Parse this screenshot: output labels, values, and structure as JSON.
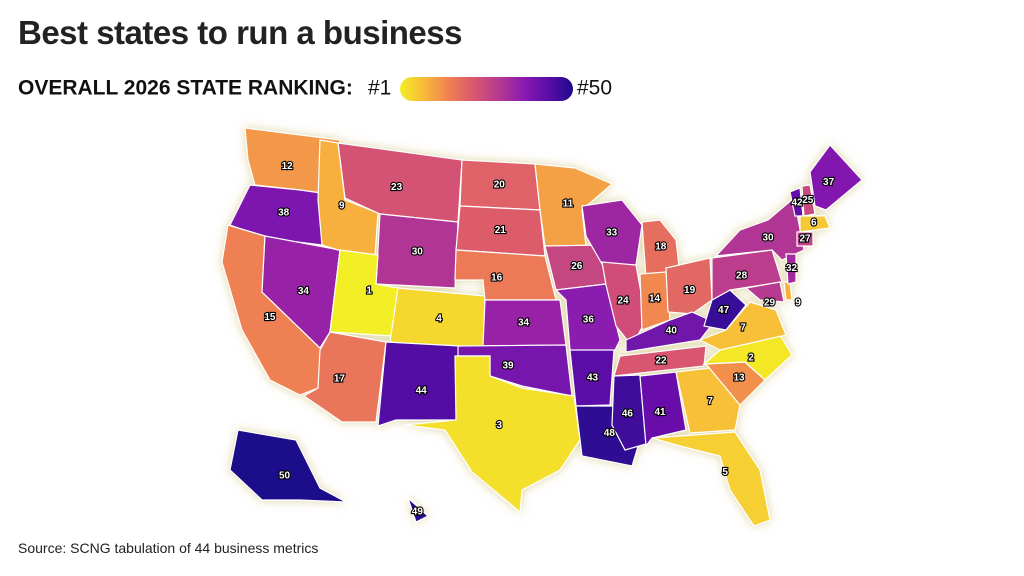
{
  "header": {
    "title": "Best states to run a business",
    "legend_title": "OVERALL 2026 STATE RANKING:"
  },
  "legend": {
    "min": {
      "value": 1,
      "label": "#1"
    },
    "max": {
      "value": 50,
      "label": "#50"
    }
  },
  "map": {
    "ranks": [
      12,
      38,
      15,
      34,
      9,
      23,
      30,
      1,
      4,
      17,
      44,
      20,
      21,
      16,
      34,
      39,
      3,
      11,
      26,
      36,
      43,
      48,
      33,
      24,
      46,
      18,
      14,
      19,
      40,
      22,
      41,
      7,
      5,
      13,
      2,
      7,
      47,
      28,
      30,
      29,
      9,
      32,
      42,
      25,
      37,
      6,
      27,
      50,
      49
    ]
  },
  "footer": {
    "source": "Source: SCNG tabulation of 44 business metrics"
  }
}
